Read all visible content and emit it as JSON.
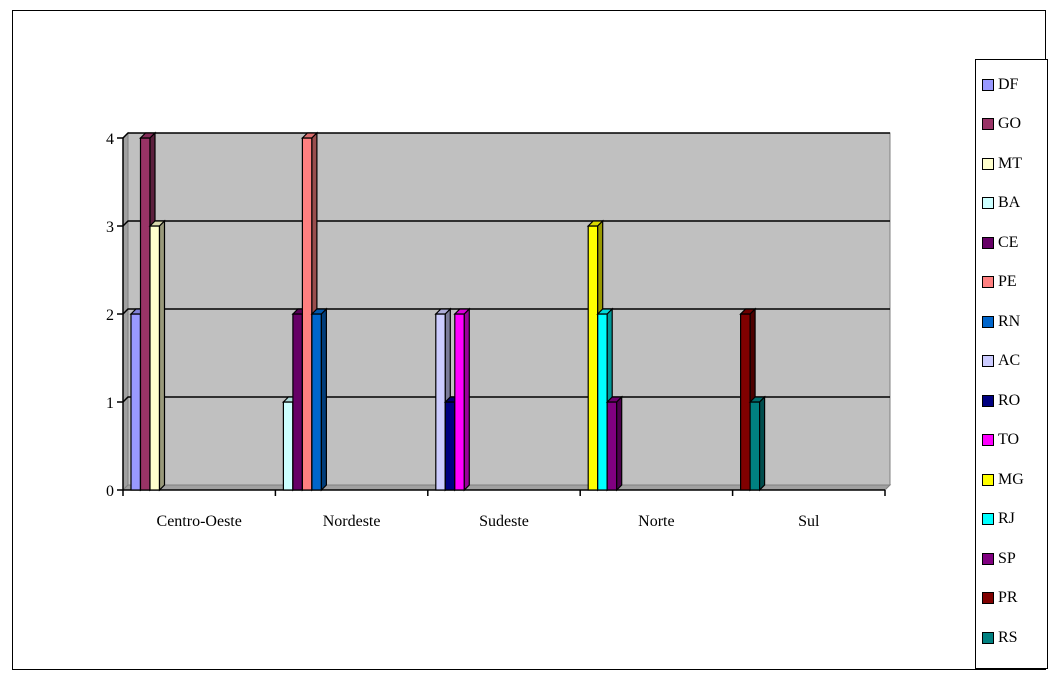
{
  "chart_data": {
    "type": "bar",
    "title": "",
    "xlabel": "",
    "ylabel": "",
    "ylim": [
      0,
      4
    ],
    "yticks": [
      "0",
      "1",
      "2",
      "3",
      "4"
    ],
    "grid": true,
    "legend_placement": "right",
    "plot_background": "#c0c0c0",
    "categories": [
      "Centro-Oeste",
      "Nordeste",
      "Sudeste",
      "Norte",
      "Sul"
    ],
    "series": [
      {
        "name": "DF",
        "color": "#9999ff",
        "category": "Centro-Oeste",
        "value": 2
      },
      {
        "name": "GO",
        "color": "#993366",
        "category": "Centro-Oeste",
        "value": 4
      },
      {
        "name": "MT",
        "color": "#ffffcc",
        "category": "Centro-Oeste",
        "value": 3
      },
      {
        "name": "BA",
        "color": "#ccffff",
        "category": "Nordeste",
        "value": 1
      },
      {
        "name": "CE",
        "color": "#660066",
        "category": "Nordeste",
        "value": 2
      },
      {
        "name": "PE",
        "color": "#ff8080",
        "category": "Nordeste",
        "value": 4
      },
      {
        "name": "RN",
        "color": "#0066cc",
        "category": "Nordeste",
        "value": 2
      },
      {
        "name": "AC",
        "color": "#ccccff",
        "category": "Sudeste",
        "value": 2
      },
      {
        "name": "RO",
        "color": "#000080",
        "category": "Sudeste",
        "value": 1
      },
      {
        "name": "TO",
        "color": "#ff00ff",
        "category": "Sudeste",
        "value": 2
      },
      {
        "name": "MG",
        "color": "#ffff00",
        "category": "Norte",
        "value": 3
      },
      {
        "name": "RJ",
        "color": "#00ffff",
        "category": "Norte",
        "value": 2
      },
      {
        "name": "SP",
        "color": "#800080",
        "category": "Norte",
        "value": 1
      },
      {
        "name": "PR",
        "color": "#800000",
        "category": "Sul",
        "value": 2
      },
      {
        "name": "RS",
        "color": "#008080",
        "category": "Sul",
        "value": 1
      }
    ]
  }
}
